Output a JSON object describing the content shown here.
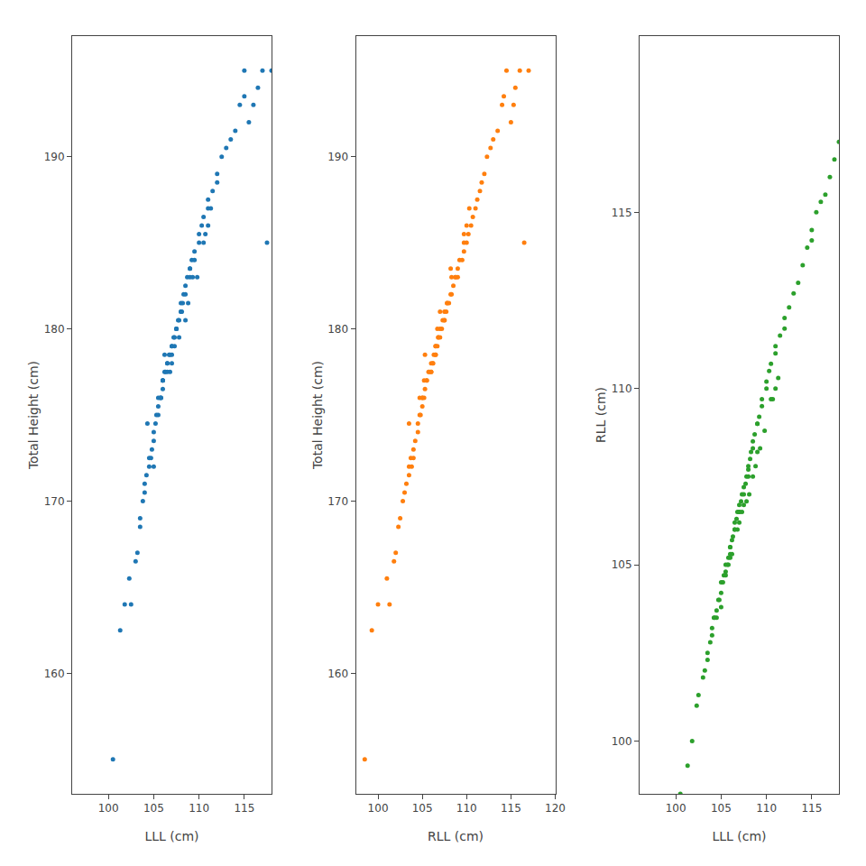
{
  "chart_data": [
    {
      "type": "scatter",
      "xlabel": "LLL (cm)",
      "ylabel": "Total Height (cm)",
      "xlim": [
        96.0,
        118.0
      ],
      "ylim": [
        153,
        197
      ],
      "xticks": [
        100,
        105,
        110,
        115
      ],
      "yticks": [
        160,
        170,
        180,
        190
      ],
      "grid": false,
      "x": [
        100.5,
        101.3,
        101.8,
        102.3,
        102.5,
        103.0,
        103.2,
        103.5,
        103.5,
        103.8,
        104.0,
        104.0,
        104.2,
        104.5,
        104.5,
        104.7,
        104.8,
        105.0,
        105.0,
        105.0,
        105.2,
        105.3,
        105.5,
        105.5,
        105.7,
        105.8,
        106.0,
        106.0,
        106.0,
        106.2,
        106.3,
        106.5,
        106.5,
        106.5,
        106.7,
        106.8,
        107.0,
        107.0,
        107.0,
        107.2,
        107.3,
        107.5,
        107.5,
        107.7,
        107.8,
        108.0,
        108.0,
        108.0,
        108.2,
        108.3,
        108.5,
        108.5,
        108.7,
        109.0,
        109.0,
        109.2,
        109.5,
        109.5,
        110.0,
        110.0,
        110.3,
        110.5,
        111.0,
        111.0,
        111.5,
        112.0,
        112.0,
        112.5,
        113.0,
        113.5,
        114.0,
        114.5,
        115.0,
        115.0,
        115.5,
        116.0,
        116.5,
        117.0,
        117.5,
        118.0,
        105.5,
        106.2,
        107.3,
        108.1,
        106.8,
        107.8,
        108.8,
        109.3,
        110.7,
        111.3,
        104.3,
        105.8,
        107.0,
        108.5,
        109.8,
        111.0,
        106.0,
        107.5,
        109.0,
        110.5
      ],
      "values": [
        155.0,
        162.5,
        164.0,
        165.5,
        164.0,
        166.5,
        167.0,
        168.5,
        169.0,
        170.0,
        170.5,
        171.0,
        171.5,
        172.0,
        172.5,
        172.5,
        173.0,
        172.0,
        173.5,
        174.0,
        174.5,
        175.0,
        175.0,
        175.5,
        176.0,
        176.0,
        176.5,
        177.0,
        177.0,
        177.5,
        177.5,
        177.5,
        178.0,
        178.0,
        178.5,
        178.5,
        178.5,
        179.0,
        179.0,
        179.5,
        179.5,
        180.0,
        180.0,
        180.5,
        180.5,
        181.0,
        181.0,
        181.5,
        181.5,
        182.0,
        182.0,
        182.5,
        183.0,
        183.0,
        183.5,
        184.0,
        184.0,
        184.5,
        185.0,
        185.5,
        186.0,
        186.5,
        187.0,
        187.5,
        188.0,
        188.5,
        189.0,
        190.0,
        190.5,
        191.0,
        191.5,
        193.0,
        193.5,
        195.0,
        192.0,
        193.0,
        194.0,
        195.0,
        185.0,
        195.0,
        176.0,
        178.5,
        179.0,
        181.0,
        177.5,
        179.5,
        181.5,
        183.0,
        185.5,
        187.0,
        174.5,
        176.0,
        178.0,
        180.5,
        183.0,
        186.0,
        177.0,
        180.0,
        183.5,
        185.0
      ]
    },
    {
      "type": "scatter",
      "xlabel": "RLL (cm)",
      "ylabel": "Total Height (cm)",
      "xlim": [
        97.5,
        120.0
      ],
      "ylim": [
        153,
        197
      ],
      "xticks": [
        100,
        105,
        110,
        115,
        120
      ],
      "yticks": [
        160,
        170,
        180,
        190
      ],
      "grid": false,
      "x": [
        98.5,
        99.3,
        100.0,
        101.0,
        101.3,
        101.8,
        102.0,
        102.3,
        102.5,
        102.8,
        103.0,
        103.2,
        103.5,
        103.5,
        103.7,
        104.0,
        104.0,
        103.8,
        104.2,
        104.5,
        104.5,
        104.7,
        104.8,
        105.0,
        105.0,
        105.2,
        105.3,
        105.5,
        105.5,
        105.7,
        105.8,
        106.0,
        106.0,
        106.2,
        106.3,
        106.5,
        106.5,
        106.5,
        106.7,
        106.8,
        107.0,
        107.0,
        107.2,
        107.3,
        107.5,
        107.5,
        107.7,
        107.8,
        108.0,
        108.2,
        108.3,
        108.5,
        108.7,
        109.0,
        109.0,
        109.2,
        109.5,
        109.7,
        110.0,
        110.2,
        110.5,
        110.7,
        111.0,
        111.2,
        111.5,
        111.7,
        112.0,
        112.3,
        112.7,
        113.0,
        113.5,
        114.0,
        114.2,
        114.5,
        115.0,
        115.3,
        115.5,
        116.0,
        116.5,
        117.0,
        104.7,
        105.3,
        106.5,
        107.0,
        106.0,
        106.8,
        107.8,
        108.3,
        109.7,
        110.3,
        103.5,
        105.0,
        106.2,
        107.5,
        108.8,
        110.0,
        105.2,
        106.7,
        108.2,
        109.7
      ],
      "values": [
        155.0,
        162.5,
        164.0,
        165.5,
        164.0,
        166.5,
        167.0,
        168.5,
        169.0,
        170.0,
        170.5,
        171.0,
        171.5,
        172.0,
        172.5,
        172.5,
        173.0,
        172.0,
        173.5,
        174.0,
        174.5,
        175.0,
        175.0,
        175.5,
        176.0,
        176.0,
        176.5,
        177.0,
        177.0,
        177.5,
        177.5,
        177.5,
        178.0,
        178.0,
        178.5,
        178.5,
        178.5,
        179.0,
        179.0,
        179.5,
        179.5,
        180.0,
        180.0,
        180.5,
        180.5,
        181.0,
        181.0,
        181.5,
        181.5,
        182.0,
        182.0,
        182.5,
        183.0,
        183.0,
        183.5,
        184.0,
        184.0,
        184.5,
        185.0,
        185.5,
        186.0,
        186.5,
        187.0,
        187.5,
        188.0,
        188.5,
        189.0,
        190.0,
        190.5,
        191.0,
        191.5,
        193.0,
        193.5,
        195.0,
        192.0,
        193.0,
        194.0,
        195.0,
        185.0,
        195.0,
        176.0,
        178.5,
        179.0,
        181.0,
        177.5,
        179.5,
        181.5,
        183.0,
        185.5,
        187.0,
        174.5,
        176.0,
        178.0,
        180.5,
        183.0,
        186.0,
        177.0,
        180.0,
        183.5,
        185.0
      ]
    },
    {
      "type": "scatter",
      "xlabel": "LLL (cm)",
      "ylabel": "RLL (cm)",
      "xlim": [
        96.0,
        118.0
      ],
      "ylim": [
        98.5,
        120.0
      ],
      "xticks": [
        100,
        105,
        110,
        115
      ],
      "yticks": [
        100,
        105,
        110,
        115
      ],
      "grid": false,
      "x": [
        100.5,
        101.3,
        101.8,
        102.3,
        102.5,
        103.0,
        103.2,
        103.5,
        103.5,
        103.8,
        104.0,
        104.0,
        104.2,
        104.5,
        104.5,
        104.7,
        104.8,
        105.0,
        105.0,
        105.0,
        105.2,
        105.3,
        105.5,
        105.5,
        105.7,
        105.8,
        106.0,
        106.0,
        106.0,
        106.2,
        106.3,
        106.5,
        106.5,
        106.5,
        106.7,
        106.8,
        107.0,
        107.0,
        107.0,
        107.2,
        107.3,
        107.5,
        107.5,
        107.7,
        107.8,
        108.0,
        108.0,
        108.0,
        108.2,
        108.3,
        108.5,
        108.5,
        108.7,
        109.0,
        109.0,
        109.2,
        109.5,
        109.5,
        110.0,
        110.0,
        110.3,
        110.5,
        111.0,
        111.0,
        111.5,
        112.0,
        112.0,
        112.5,
        113.0,
        113.5,
        114.0,
        114.5,
        115.0,
        115.0,
        115.5,
        116.0,
        116.5,
        117.0,
        117.5,
        118.0,
        105.5,
        106.2,
        107.3,
        108.1,
        106.8,
        107.8,
        108.8,
        109.3,
        110.7,
        111.3,
        104.3,
        105.8,
        107.0,
        108.5,
        109.8,
        111.0,
        106.0,
        107.5,
        109.0,
        110.5
      ],
      "values": [
        98.5,
        99.3,
        100.0,
        101.0,
        101.3,
        101.8,
        102.0,
        102.3,
        102.5,
        102.8,
        103.0,
        103.2,
        103.5,
        103.5,
        103.7,
        104.0,
        104.0,
        103.8,
        104.2,
        104.5,
        104.5,
        104.7,
        104.8,
        105.0,
        105.0,
        105.2,
        105.3,
        105.5,
        105.5,
        105.7,
        105.8,
        106.0,
        106.0,
        106.2,
        106.3,
        106.5,
        106.5,
        106.5,
        106.7,
        106.8,
        107.0,
        107.0,
        107.2,
        107.3,
        107.5,
        107.5,
        107.7,
        107.8,
        108.0,
        108.2,
        108.3,
        108.5,
        108.7,
        109.0,
        109.0,
        109.2,
        109.5,
        109.7,
        110.0,
        110.2,
        110.5,
        110.7,
        111.0,
        111.2,
        111.5,
        111.7,
        112.0,
        112.3,
        112.7,
        113.0,
        113.5,
        114.0,
        114.2,
        114.5,
        115.0,
        115.3,
        115.5,
        116.0,
        116.5,
        117.0,
        104.7,
        105.3,
        106.5,
        107.0,
        106.0,
        106.8,
        107.8,
        108.3,
        109.7,
        110.3,
        103.5,
        105.0,
        106.2,
        107.5,
        108.8,
        110.0,
        105.2,
        106.7,
        108.2,
        109.7
      ]
    }
  ]
}
